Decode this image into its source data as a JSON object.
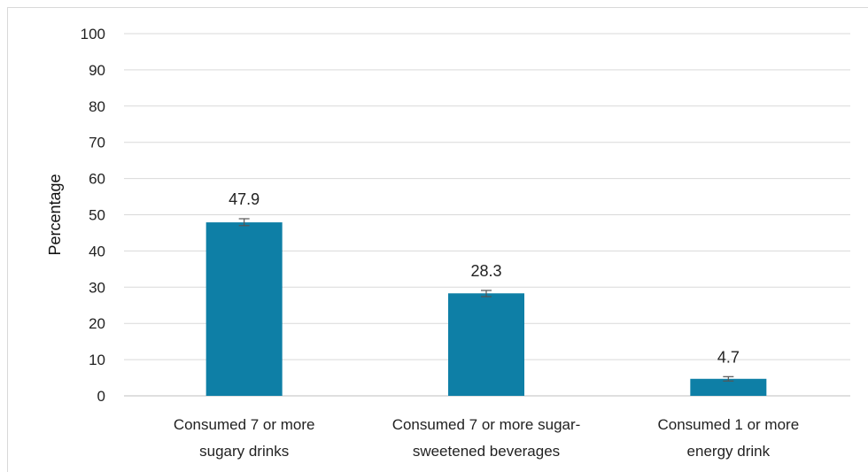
{
  "chart_data": {
    "type": "bar",
    "title": "",
    "xlabel": "",
    "ylabel": "Percentage",
    "ylim": [
      0,
      100
    ],
    "yticks": [
      0,
      10,
      20,
      30,
      40,
      50,
      60,
      70,
      80,
      90,
      100
    ],
    "grid": true,
    "legend": "none",
    "bar_color": "#0E7FA6",
    "categories": [
      "Consumed 7 or more sugary drinks",
      "Consumed 7 or more sugar-sweetened beverages",
      "Consumed 1 or more energy drink"
    ],
    "category_lines": [
      [
        "Consumed 7 or more",
        "sugary drinks"
      ],
      [
        "Consumed 7 or more sugar-",
        "sweetened beverages"
      ],
      [
        "Consumed 1 or more",
        "energy drink"
      ]
    ],
    "values": [
      47.9,
      28.3,
      4.7
    ],
    "data_labels": [
      "47.9",
      "28.3",
      "4.7"
    ],
    "error_bars": [
      [
        47.0,
        48.9
      ],
      [
        27.4,
        29.1
      ],
      [
        4.1,
        5.3
      ]
    ]
  }
}
